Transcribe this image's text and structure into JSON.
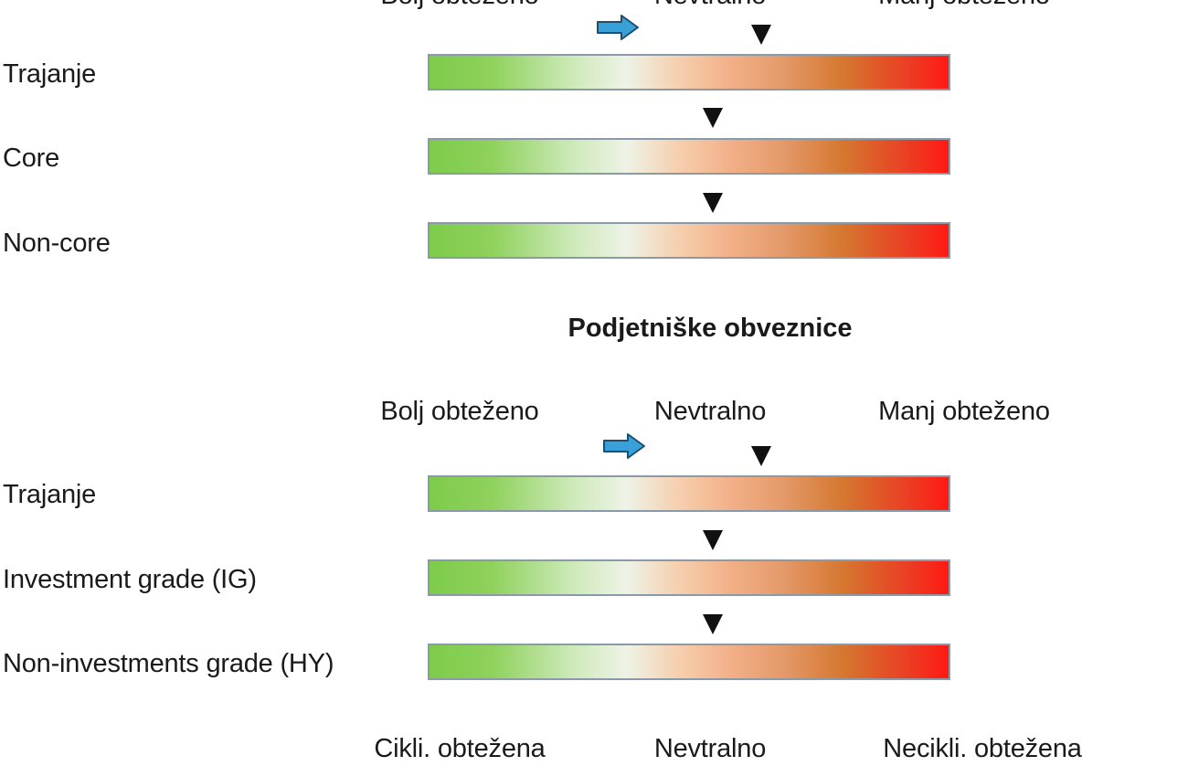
{
  "header_labels": {
    "more": "Bolj obteženo",
    "neutral": "Nevtralno",
    "less": "Manj obteženo"
  },
  "government_section": {
    "rows": [
      {
        "label": "Trajanje",
        "indicator_position": 0.64,
        "has_shift_arrow": true
      },
      {
        "label": "Core",
        "indicator_position": 0.545,
        "has_shift_arrow": false
      },
      {
        "label": "Non-core",
        "indicator_position": 0.545,
        "has_shift_arrow": false
      }
    ]
  },
  "corporate_section": {
    "title": "Podjetniške obveznice",
    "labels": {
      "more": "Bolj obteženo",
      "neutral": "Nevtralno",
      "less": "Manj obteženo"
    },
    "rows": [
      {
        "label": "Trajanje",
        "indicator_position": 0.64,
        "has_shift_arrow": true
      },
      {
        "label": "Investment grade (IG)",
        "indicator_position": 0.545,
        "has_shift_arrow": false
      },
      {
        "label": "Non-investments grade (HY)",
        "indicator_position": 0.545,
        "has_shift_arrow": false
      }
    ],
    "footer_labels": {
      "left": "Cikli. obtežena",
      "neutral": "Nevtralno",
      "right": "Necikli. obtežena"
    }
  },
  "icons": {
    "shift_arrow": "right-arrow-icon",
    "indicator": "down-triangle-icon"
  },
  "colors": {
    "arrow_fill": "#3aa0d8",
    "arrow_stroke": "#1d4f70",
    "marker": "#111111",
    "gradient_left": "#7dcc4a",
    "gradient_middle": "#eef3e6",
    "gradient_right": "#ff1a12"
  }
}
